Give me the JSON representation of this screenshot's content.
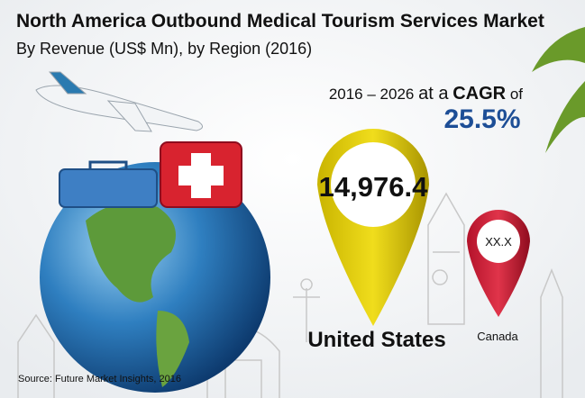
{
  "header": {
    "title": "North America Outbound Medical Tourism Services Market",
    "subtitle": "By Revenue (US$ Mn), by Region (2016)"
  },
  "cagr": {
    "period": "2016 – 2026",
    "prefix": "at a",
    "label": "CAGR",
    "suffix": "of",
    "value": "25.5%"
  },
  "regions": [
    {
      "name": "United States",
      "value": "14,976.4"
    },
    {
      "name": "Canada",
      "value": "XX.X"
    }
  ],
  "source": "Source: Future Market Insights, 2016"
}
